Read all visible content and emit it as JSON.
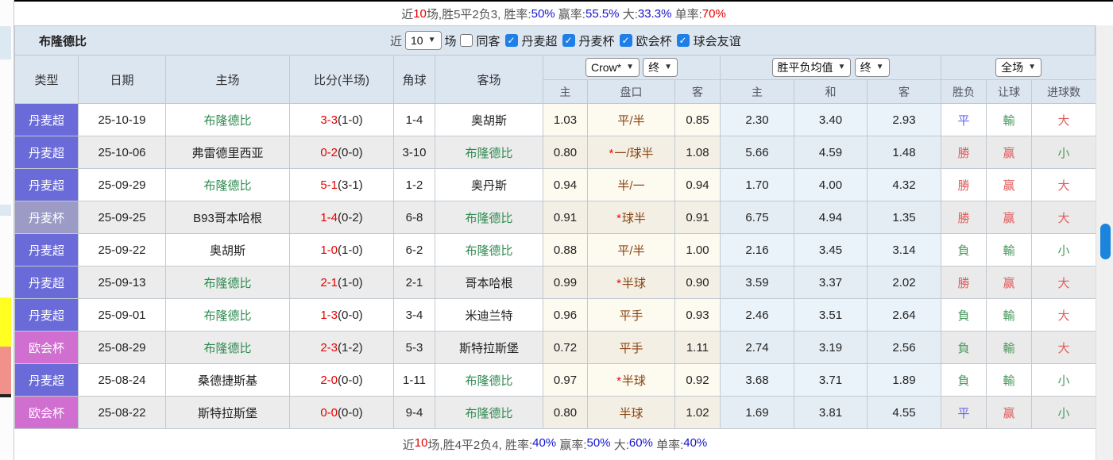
{
  "colors": {
    "header_bg": "#dce6f1",
    "badge_super": "#6a6ad8",
    "badge_cup": "#9b9bc6",
    "badge_euro": "#d06fd0",
    "team_green": "#2e8b50",
    "score_red": "#e80000",
    "result_red": "#e05c5c",
    "result_green": "#4a9a5e",
    "result_blue": "#6666f0",
    "handicap_brown": "#8b4513",
    "pct_blue": "#1414cc",
    "pct_red": "#e00000",
    "scrollbar_blue": "#1b84dc"
  },
  "summary_top": {
    "near": "近",
    "count": "10",
    "mid": "场,胜5平2负3, 胜率:",
    "win_rate": "50%",
    "l2": " 赢率:",
    "profit_rate": "55.5%",
    "l3": " 大:",
    "big_rate": "33.3%",
    "l4": " 单率:",
    "single_rate": "70%"
  },
  "team_panel": {
    "title": "布隆德比",
    "near_label": "近",
    "count": "10",
    "games_label": "场",
    "same_away_label": "同客",
    "leagues": [
      "丹麦超",
      "丹麦杯",
      "欧会杯",
      "球会友谊"
    ]
  },
  "table": {
    "columns": [
      "类型",
      "日期",
      "主场",
      "比分(半场)",
      "角球",
      "客场"
    ],
    "sub_columns": [
      "主",
      "盘口",
      "客",
      "主",
      "和",
      "客",
      "胜负",
      "让球",
      "进球数"
    ],
    "selects": {
      "bookmaker": "Crow*",
      "bookmaker_state": "终",
      "odds": "胜平负均值",
      "odds_state": "终",
      "scope": "全场"
    },
    "rows": [
      {
        "league": "丹麦超",
        "type": "super",
        "date": "25-10-19",
        "home": "布隆德比",
        "home_self": true,
        "score": "3-3",
        "half": "(1-0)",
        "corner": "1-4",
        "away": "奥胡斯",
        "away_self": false,
        "crow_home": "1.03",
        "handicap": "平/半",
        "star": false,
        "crow_away": "0.85",
        "avg_home": "2.30",
        "avg_draw": "3.40",
        "avg_away": "2.93",
        "wdl": {
          "t": "平",
          "c": "blue"
        },
        "let": {
          "t": "輸",
          "c": "green"
        },
        "goals": {
          "t": "大",
          "c": "red"
        }
      },
      {
        "league": "丹麦超",
        "type": "super",
        "date": "25-10-06",
        "home": "弗雷德里西亚",
        "home_self": false,
        "score": "0-2",
        "half": "(0-0)",
        "corner": "3-10",
        "away": "布隆德比",
        "away_self": true,
        "crow_home": "0.80",
        "handicap": "一/球半",
        "star": true,
        "crow_away": "1.08",
        "avg_home": "5.66",
        "avg_draw": "4.59",
        "avg_away": "1.48",
        "wdl": {
          "t": "勝",
          "c": "red"
        },
        "let": {
          "t": "赢",
          "c": "red"
        },
        "goals": {
          "t": "小",
          "c": "green"
        }
      },
      {
        "league": "丹麦超",
        "type": "super",
        "date": "25-09-29",
        "home": "布隆德比",
        "home_self": true,
        "score": "5-1",
        "half": "(3-1)",
        "corner": "1-2",
        "away": "奥丹斯",
        "away_self": false,
        "crow_home": "0.94",
        "handicap": "半/一",
        "star": false,
        "crow_away": "0.94",
        "avg_home": "1.70",
        "avg_draw": "4.00",
        "avg_away": "4.32",
        "wdl": {
          "t": "勝",
          "c": "red"
        },
        "let": {
          "t": "赢",
          "c": "red"
        },
        "goals": {
          "t": "大",
          "c": "red"
        }
      },
      {
        "league": "丹麦杯",
        "type": "cup",
        "date": "25-09-25",
        "home": "B93哥本哈根",
        "home_self": false,
        "score": "1-4",
        "half": "(0-2)",
        "corner": "6-8",
        "away": "布隆德比",
        "away_self": true,
        "crow_home": "0.91",
        "handicap": "球半",
        "star": true,
        "crow_away": "0.91",
        "avg_home": "6.75",
        "avg_draw": "4.94",
        "avg_away": "1.35",
        "wdl": {
          "t": "勝",
          "c": "red"
        },
        "let": {
          "t": "赢",
          "c": "red"
        },
        "goals": {
          "t": "大",
          "c": "red"
        }
      },
      {
        "league": "丹麦超",
        "type": "super",
        "date": "25-09-22",
        "home": "奥胡斯",
        "home_self": false,
        "score": "1-0",
        "half": "(1-0)",
        "corner": "6-2",
        "away": "布隆德比",
        "away_self": true,
        "crow_home": "0.88",
        "handicap": "平/半",
        "star": false,
        "crow_away": "1.00",
        "avg_home": "2.16",
        "avg_draw": "3.45",
        "avg_away": "3.14",
        "wdl": {
          "t": "負",
          "c": "green"
        },
        "let": {
          "t": "輸",
          "c": "green"
        },
        "goals": {
          "t": "小",
          "c": "green"
        }
      },
      {
        "league": "丹麦超",
        "type": "super",
        "date": "25-09-13",
        "home": "布隆德比",
        "home_self": true,
        "score": "2-1",
        "half": "(1-0)",
        "corner": "2-1",
        "away": "哥本哈根",
        "away_self": false,
        "crow_home": "0.99",
        "handicap": "半球",
        "star": true,
        "crow_away": "0.90",
        "avg_home": "3.59",
        "avg_draw": "3.37",
        "avg_away": "2.02",
        "wdl": {
          "t": "勝",
          "c": "red"
        },
        "let": {
          "t": "赢",
          "c": "red"
        },
        "goals": {
          "t": "大",
          "c": "red"
        }
      },
      {
        "league": "丹麦超",
        "type": "super",
        "date": "25-09-01",
        "home": "布隆德比",
        "home_self": true,
        "score": "1-3",
        "half": "(0-0)",
        "corner": "3-4",
        "away": "米迪兰特",
        "away_self": false,
        "crow_home": "0.96",
        "handicap": "平手",
        "star": false,
        "crow_away": "0.93",
        "avg_home": "2.46",
        "avg_draw": "3.51",
        "avg_away": "2.64",
        "wdl": {
          "t": "負",
          "c": "green"
        },
        "let": {
          "t": "輸",
          "c": "green"
        },
        "goals": {
          "t": "大",
          "c": "red"
        }
      },
      {
        "league": "欧会杯",
        "type": "euro",
        "date": "25-08-29",
        "home": "布隆德比",
        "home_self": true,
        "score": "2-3",
        "half": "(1-2)",
        "corner": "5-3",
        "away": "斯特拉斯堡",
        "away_self": false,
        "crow_home": "0.72",
        "handicap": "平手",
        "star": false,
        "crow_away": "1.11",
        "avg_home": "2.74",
        "avg_draw": "3.19",
        "avg_away": "2.56",
        "wdl": {
          "t": "負",
          "c": "green"
        },
        "let": {
          "t": "輸",
          "c": "green"
        },
        "goals": {
          "t": "大",
          "c": "red"
        }
      },
      {
        "league": "丹麦超",
        "type": "super",
        "date": "25-08-24",
        "home": "桑德捷斯基",
        "home_self": false,
        "score": "2-0",
        "half": "(0-0)",
        "corner": "1-11",
        "away": "布隆德比",
        "away_self": true,
        "crow_home": "0.97",
        "handicap": "半球",
        "star": true,
        "crow_away": "0.92",
        "avg_home": "3.68",
        "avg_draw": "3.71",
        "avg_away": "1.89",
        "wdl": {
          "t": "負",
          "c": "green"
        },
        "let": {
          "t": "輸",
          "c": "green"
        },
        "goals": {
          "t": "小",
          "c": "green"
        }
      },
      {
        "league": "欧会杯",
        "type": "euro",
        "date": "25-08-22",
        "home": "斯特拉斯堡",
        "home_self": false,
        "score": "0-0",
        "half": "(0-0)",
        "corner": "9-4",
        "away": "布隆德比",
        "away_self": true,
        "crow_home": "0.80",
        "handicap": "半球",
        "star": false,
        "crow_away": "1.02",
        "avg_home": "1.69",
        "avg_draw": "3.81",
        "avg_away": "4.55",
        "wdl": {
          "t": "平",
          "c": "blue"
        },
        "let": {
          "t": "赢",
          "c": "red"
        },
        "goals": {
          "t": "小",
          "c": "green"
        }
      }
    ]
  },
  "summary_bottom": {
    "near": "近",
    "count": "10",
    "mid": "场,胜4平2负4, 胜率:",
    "win_rate": "40%",
    "l2": " 赢率:",
    "profit_rate": "50%",
    "l3": " 大:",
    "big_rate": "60%",
    "l4": " 单率:",
    "single_rate": "40%"
  }
}
